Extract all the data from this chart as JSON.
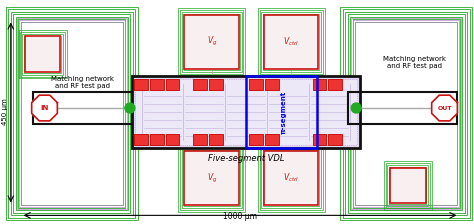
{
  "fig_width": 4.74,
  "fig_height": 2.24,
  "dpi": 100,
  "bg_color": "#ffffff",
  "green": "#22aa22",
  "red": "#cc1111",
  "blue": "#0000ee",
  "purple": "#bb88cc",
  "dark": "#111111",
  "lavender": "#ede8f8",
  "lavender2": "#e0d8f0",
  "gray_line": "#aaaaaa",
  "coil_color": "#c0b0d8",
  "title_bottom": "Five-segment VDL",
  "label_in": "IN",
  "label_out": "OUT",
  "label_vg": "$V_g$",
  "label_vctrl": "$V_{ctrl}$",
  "label_match_left": "Matching network\nand RF test pad",
  "label_match_right": "Matching network\nand RF test pad",
  "label_pi": "π-segment",
  "dim_y": "450 μm",
  "dim_x": "1000 μm",
  "xlim": [
    0,
    474
  ],
  "ylim": [
    0,
    224
  ]
}
